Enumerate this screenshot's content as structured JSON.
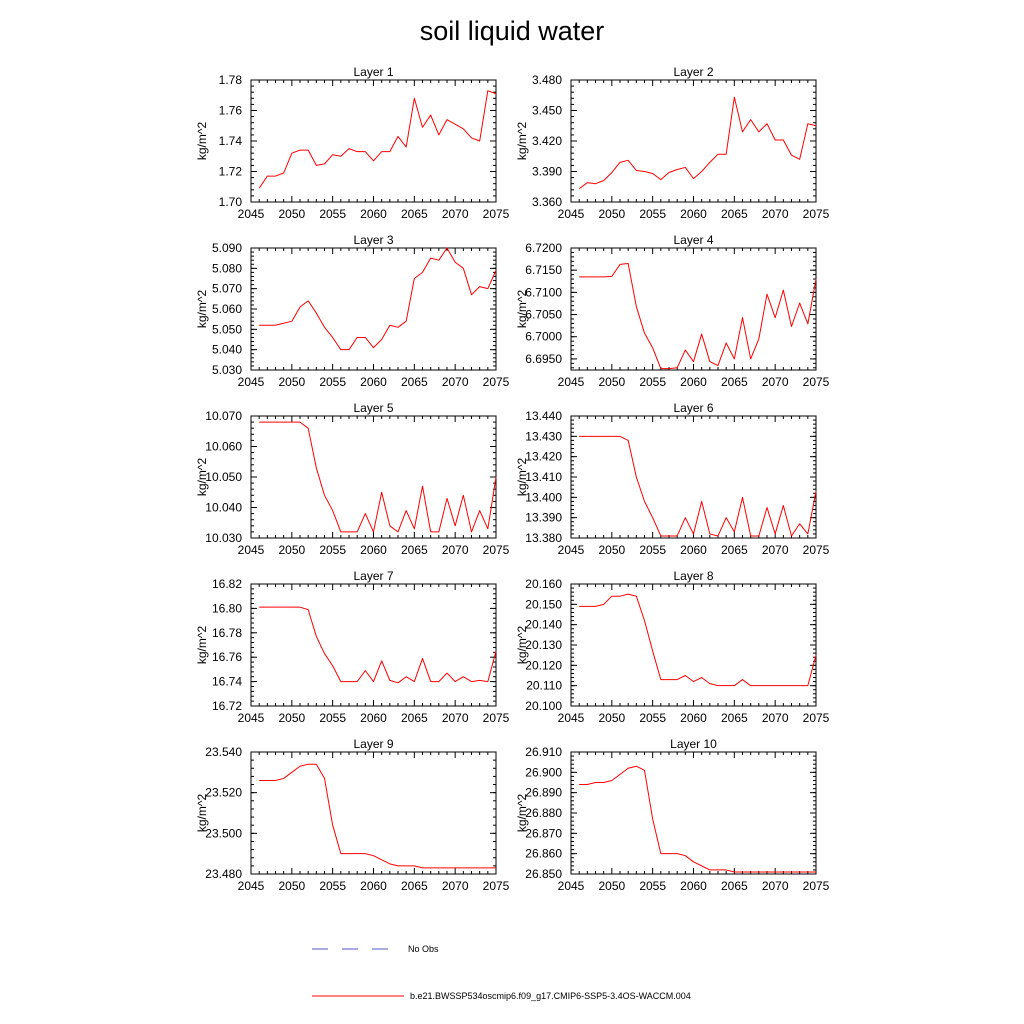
{
  "title": "soil liquid water",
  "colors": {
    "model": "#ff0000",
    "obs": "#5555cc",
    "axis": "#000000"
  },
  "legend": {
    "obs_label": "No Obs",
    "model_label": "b.e21.BWSSP534oscmip6.f09_g17.CMIP6-SSP5-3.4OS-WACCM.004"
  },
  "chart_data": [
    {
      "type": "line",
      "title": "Layer 1",
      "xlabel": "",
      "ylabel": "kg/m^2",
      "xlim": [
        2045,
        2075
      ],
      "ylim": [
        1.7,
        1.78
      ],
      "xticks": [
        2045,
        2050,
        2055,
        2060,
        2065,
        2070,
        2075
      ],
      "xtick_labels": [
        "2045",
        "2050",
        "2055",
        "2060",
        "2065",
        "2070",
        "2075"
      ],
      "yticks": [
        1.7,
        1.72,
        1.74,
        1.76,
        1.78
      ],
      "ytick_labels": [
        "1.70",
        "1.72",
        "1.74",
        "1.76",
        "1.78"
      ],
      "x": [
        2046,
        2047,
        2048,
        2049,
        2050,
        2051,
        2052,
        2053,
        2054,
        2055,
        2056,
        2057,
        2058,
        2059,
        2060,
        2061,
        2062,
        2063,
        2064,
        2065,
        2066,
        2067,
        2068,
        2069,
        2070,
        2071,
        2072,
        2073,
        2074,
        2075
      ],
      "series": [
        {
          "values": [
            1.709,
            1.717,
            1.717,
            1.719,
            1.732,
            1.734,
            1.734,
            1.724,
            1.725,
            1.731,
            1.73,
            1.735,
            1.733,
            1.733,
            1.727,
            1.733,
            1.733,
            1.743,
            1.736,
            1.768,
            1.749,
            1.757,
            1.744,
            1.754,
            1.751,
            1.748,
            1.742,
            1.74,
            1.773,
            1.771
          ]
        }
      ]
    },
    {
      "type": "line",
      "title": "Layer 2",
      "xlabel": "",
      "ylabel": "kg/m^2",
      "xlim": [
        2045,
        2075
      ],
      "ylim": [
        3.36,
        3.48
      ],
      "xticks": [
        2045,
        2050,
        2055,
        2060,
        2065,
        2070,
        2075
      ],
      "xtick_labels": [
        "2045",
        "2050",
        "2055",
        "2060",
        "2065",
        "2070",
        "2075"
      ],
      "yticks": [
        3.36,
        3.39,
        3.42,
        3.45,
        3.48
      ],
      "ytick_labels": [
        "3.360",
        "3.390",
        "3.420",
        "3.450",
        "3.480"
      ],
      "x": [
        2046,
        2047,
        2048,
        2049,
        2050,
        2051,
        2052,
        2053,
        2054,
        2055,
        2056,
        2057,
        2058,
        2059,
        2060,
        2061,
        2062,
        2063,
        2064,
        2065,
        2066,
        2067,
        2068,
        2069,
        2070,
        2071,
        2072,
        2073,
        2074,
        2075
      ],
      "series": [
        {
          "values": [
            3.373,
            3.379,
            3.378,
            3.381,
            3.389,
            3.399,
            3.401,
            3.391,
            3.39,
            3.388,
            3.382,
            3.389,
            3.392,
            3.394,
            3.383,
            3.39,
            3.399,
            3.407,
            3.407,
            3.463,
            3.429,
            3.441,
            3.429,
            3.437,
            3.421,
            3.421,
            3.406,
            3.402,
            3.437,
            3.435
          ]
        }
      ]
    },
    {
      "type": "line",
      "title": "Layer 3",
      "xlabel": "",
      "ylabel": "kg/m^2",
      "xlim": [
        2045,
        2075
      ],
      "ylim": [
        5.03,
        5.09
      ],
      "xticks": [
        2045,
        2050,
        2055,
        2060,
        2065,
        2070,
        2075
      ],
      "xtick_labels": [
        "2045",
        "2050",
        "2055",
        "2060",
        "2065",
        "2070",
        "2075"
      ],
      "yticks": [
        5.03,
        5.04,
        5.05,
        5.06,
        5.07,
        5.08,
        5.09
      ],
      "ytick_labels": [
        "5.030",
        "5.040",
        "5.050",
        "5.060",
        "5.070",
        "5.080",
        "5.090"
      ],
      "x": [
        2046,
        2047,
        2048,
        2049,
        2050,
        2051,
        2052,
        2053,
        2054,
        2055,
        2056,
        2057,
        2058,
        2059,
        2060,
        2061,
        2062,
        2063,
        2064,
        2065,
        2066,
        2067,
        2068,
        2069,
        2070,
        2071,
        2072,
        2073,
        2074,
        2075
      ],
      "series": [
        {
          "values": [
            5.052,
            5.052,
            5.052,
            5.053,
            5.054,
            5.061,
            5.064,
            5.058,
            5.051,
            5.046,
            5.04,
            5.04,
            5.046,
            5.046,
            5.041,
            5.045,
            5.052,
            5.051,
            5.054,
            5.075,
            5.078,
            5.085,
            5.084,
            5.09,
            5.083,
            5.08,
            5.067,
            5.071,
            5.07,
            5.079
          ]
        }
      ]
    },
    {
      "type": "line",
      "title": "Layer 4",
      "xlabel": "",
      "ylabel": "kg/m^2",
      "xlim": [
        2045,
        2075
      ],
      "ylim": [
        6.6925,
        6.72
      ],
      "xticks": [
        2045,
        2050,
        2055,
        2060,
        2065,
        2070,
        2075
      ],
      "xtick_labels": [
        "2045",
        "2050",
        "2055",
        "2060",
        "2065",
        "2070",
        "2075"
      ],
      "yticks": [
        6.695,
        6.7,
        6.705,
        6.71,
        6.715,
        6.72
      ],
      "ytick_labels": [
        "6.6950",
        "6.7000",
        "6.7050",
        "6.7100",
        "6.7150",
        "6.7200"
      ],
      "x": [
        2046,
        2047,
        2048,
        2049,
        2050,
        2051,
        2052,
        2053,
        2054,
        2055,
        2056,
        2057,
        2058,
        2059,
        2060,
        2061,
        2062,
        2063,
        2064,
        2065,
        2066,
        2067,
        2068,
        2069,
        2070,
        2071,
        2072,
        2073,
        2074,
        2075
      ],
      "series": [
        {
          "values": [
            6.7135,
            6.7135,
            6.7135,
            6.7135,
            6.7136,
            6.7163,
            6.7165,
            6.7068,
            6.7008,
            6.6975,
            6.6928,
            6.6928,
            6.693,
            6.697,
            6.6944,
            6.7006,
            6.6944,
            6.6935,
            6.6986,
            6.695,
            6.7043,
            6.695,
            6.6995,
            6.7096,
            6.7043,
            6.7105,
            6.7023,
            6.7076,
            6.7029,
            6.713
          ]
        }
      ]
    },
    {
      "type": "line",
      "title": "Layer 5",
      "xlabel": "",
      "ylabel": "kg/m^2",
      "xlim": [
        2045,
        2075
      ],
      "ylim": [
        10.03,
        10.07
      ],
      "xticks": [
        2045,
        2050,
        2055,
        2060,
        2065,
        2070,
        2075
      ],
      "xtick_labels": [
        "2045",
        "2050",
        "2055",
        "2060",
        "2065",
        "2070",
        "2075"
      ],
      "yticks": [
        10.03,
        10.04,
        10.05,
        10.06,
        10.07
      ],
      "ytick_labels": [
        "10.030",
        "10.040",
        "10.050",
        "10.060",
        "10.070"
      ],
      "x": [
        2046,
        2047,
        2048,
        2049,
        2050,
        2051,
        2052,
        2053,
        2054,
        2055,
        2056,
        2057,
        2058,
        2059,
        2060,
        2061,
        2062,
        2063,
        2064,
        2065,
        2066,
        2067,
        2068,
        2069,
        2070,
        2071,
        2072,
        2073,
        2074,
        2075
      ],
      "series": [
        {
          "values": [
            10.068,
            10.068,
            10.068,
            10.068,
            10.068,
            10.068,
            10.066,
            10.053,
            10.044,
            10.039,
            10.032,
            10.032,
            10.032,
            10.038,
            10.032,
            10.045,
            10.034,
            10.032,
            10.039,
            10.033,
            10.047,
            10.032,
            10.032,
            10.043,
            10.034,
            10.044,
            10.032,
            10.039,
            10.033,
            10.05
          ]
        }
      ]
    },
    {
      "type": "line",
      "title": "Layer 6",
      "xlabel": "",
      "ylabel": "kg/m^2",
      "xlim": [
        2045,
        2075
      ],
      "ylim": [
        13.38,
        13.44
      ],
      "xticks": [
        2045,
        2050,
        2055,
        2060,
        2065,
        2070,
        2075
      ],
      "xtick_labels": [
        "2045",
        "2050",
        "2055",
        "2060",
        "2065",
        "2070",
        "2075"
      ],
      "yticks": [
        13.38,
        13.39,
        13.4,
        13.41,
        13.42,
        13.43,
        13.44
      ],
      "ytick_labels": [
        "13.380",
        "13.390",
        "13.400",
        "13.410",
        "13.420",
        "13.430",
        "13.440"
      ],
      "x": [
        2046,
        2047,
        2048,
        2049,
        2050,
        2051,
        2052,
        2053,
        2054,
        2055,
        2056,
        2057,
        2058,
        2059,
        2060,
        2061,
        2062,
        2063,
        2064,
        2065,
        2066,
        2067,
        2068,
        2069,
        2070,
        2071,
        2072,
        2073,
        2074,
        2075
      ],
      "series": [
        {
          "values": [
            13.43,
            13.43,
            13.43,
            13.43,
            13.43,
            13.43,
            13.428,
            13.41,
            13.398,
            13.39,
            13.381,
            13.381,
            13.381,
            13.39,
            13.382,
            13.398,
            13.382,
            13.381,
            13.39,
            13.383,
            13.4,
            13.381,
            13.381,
            13.395,
            13.382,
            13.396,
            13.381,
            13.387,
            13.382,
            13.403
          ]
        }
      ]
    },
    {
      "type": "line",
      "title": "Layer 7",
      "xlabel": "",
      "ylabel": "kg/m^2",
      "xlim": [
        2045,
        2075
      ],
      "ylim": [
        16.72,
        16.82
      ],
      "xticks": [
        2045,
        2050,
        2055,
        2060,
        2065,
        2070,
        2075
      ],
      "xtick_labels": [
        "2045",
        "2050",
        "2055",
        "2060",
        "2065",
        "2070",
        "2075"
      ],
      "yticks": [
        16.72,
        16.74,
        16.76,
        16.78,
        16.8,
        16.82
      ],
      "ytick_labels": [
        "16.72",
        "16.74",
        "16.76",
        "16.78",
        "16.80",
        "16.82"
      ],
      "x": [
        2046,
        2047,
        2048,
        2049,
        2050,
        2051,
        2052,
        2053,
        2054,
        2055,
        2056,
        2057,
        2058,
        2059,
        2060,
        2061,
        2062,
        2063,
        2064,
        2065,
        2066,
        2067,
        2068,
        2069,
        2070,
        2071,
        2072,
        2073,
        2074,
        2075
      ],
      "series": [
        {
          "values": [
            16.801,
            16.801,
            16.801,
            16.801,
            16.801,
            16.801,
            16.799,
            16.777,
            16.763,
            16.753,
            16.74,
            16.74,
            16.74,
            16.749,
            16.74,
            16.757,
            16.741,
            16.739,
            16.744,
            16.74,
            16.759,
            16.74,
            16.74,
            16.747,
            16.74,
            16.744,
            16.74,
            16.741,
            16.74,
            16.765
          ]
        }
      ]
    },
    {
      "type": "line",
      "title": "Layer 8",
      "xlabel": "",
      "ylabel": "kg/m^2",
      "xlim": [
        2045,
        2075
      ],
      "ylim": [
        20.1,
        20.16
      ],
      "xticks": [
        2045,
        2050,
        2055,
        2060,
        2065,
        2070,
        2075
      ],
      "xtick_labels": [
        "2045",
        "2050",
        "2055",
        "2060",
        "2065",
        "2070",
        "2075"
      ],
      "yticks": [
        20.1,
        20.11,
        20.12,
        20.13,
        20.14,
        20.15,
        20.16
      ],
      "ytick_labels": [
        "20.100",
        "20.110",
        "20.120",
        "20.130",
        "20.140",
        "20.150",
        "20.160"
      ],
      "x": [
        2046,
        2047,
        2048,
        2049,
        2050,
        2051,
        2052,
        2053,
        2054,
        2055,
        2056,
        2057,
        2058,
        2059,
        2060,
        2061,
        2062,
        2063,
        2064,
        2065,
        2066,
        2067,
        2068,
        2069,
        2070,
        2071,
        2072,
        2073,
        2074,
        2075
      ],
      "series": [
        {
          "values": [
            20.149,
            20.149,
            20.149,
            20.15,
            20.154,
            20.154,
            20.155,
            20.154,
            20.142,
            20.127,
            20.113,
            20.113,
            20.113,
            20.115,
            20.112,
            20.114,
            20.111,
            20.11,
            20.11,
            20.11,
            20.113,
            20.11,
            20.11,
            20.11,
            20.11,
            20.11,
            20.11,
            20.11,
            20.11,
            20.125
          ]
        }
      ]
    },
    {
      "type": "line",
      "title": "Layer 9",
      "xlabel": "",
      "ylabel": "kg/m^2",
      "xlim": [
        2045,
        2075
      ],
      "ylim": [
        23.48,
        23.54
      ],
      "xticks": [
        2045,
        2050,
        2055,
        2060,
        2065,
        2070,
        2075
      ],
      "xtick_labels": [
        "2045",
        "2050",
        "2055",
        "2060",
        "2065",
        "2070",
        "2075"
      ],
      "yticks": [
        23.48,
        23.5,
        23.52,
        23.54
      ],
      "ytick_labels": [
        "23.480",
        "23.500",
        "23.520",
        "23.540"
      ],
      "x": [
        2046,
        2047,
        2048,
        2049,
        2050,
        2051,
        2052,
        2053,
        2054,
        2055,
        2056,
        2057,
        2058,
        2059,
        2060,
        2061,
        2062,
        2063,
        2064,
        2065,
        2066,
        2067,
        2068,
        2069,
        2070,
        2071,
        2072,
        2073,
        2074,
        2075
      ],
      "series": [
        {
          "values": [
            23.526,
            23.526,
            23.526,
            23.527,
            23.53,
            23.533,
            23.534,
            23.534,
            23.527,
            23.504,
            23.49,
            23.49,
            23.49,
            23.49,
            23.489,
            23.487,
            23.485,
            23.484,
            23.484,
            23.484,
            23.483,
            23.483,
            23.483,
            23.483,
            23.483,
            23.483,
            23.483,
            23.483,
            23.483,
            23.483
          ]
        }
      ]
    },
    {
      "type": "line",
      "title": "Layer 10",
      "xlabel": "",
      "ylabel": "kg/m^2",
      "xlim": [
        2045,
        2075
      ],
      "ylim": [
        26.85,
        26.91
      ],
      "xticks": [
        2045,
        2050,
        2055,
        2060,
        2065,
        2070,
        2075
      ],
      "xtick_labels": [
        "2045",
        "2050",
        "2055",
        "2060",
        "2065",
        "2070",
        "2075"
      ],
      "yticks": [
        26.85,
        26.86,
        26.87,
        26.88,
        26.89,
        26.9,
        26.91
      ],
      "ytick_labels": [
        "26.850",
        "26.860",
        "26.870",
        "26.880",
        "26.890",
        "26.900",
        "26.910"
      ],
      "x": [
        2046,
        2047,
        2048,
        2049,
        2050,
        2051,
        2052,
        2053,
        2054,
        2055,
        2056,
        2057,
        2058,
        2059,
        2060,
        2061,
        2062,
        2063,
        2064,
        2065,
        2066,
        2067,
        2068,
        2069,
        2070,
        2071,
        2072,
        2073,
        2074,
        2075
      ],
      "series": [
        {
          "values": [
            26.894,
            26.894,
            26.895,
            26.895,
            26.896,
            26.899,
            26.902,
            26.903,
            26.901,
            26.877,
            26.86,
            26.86,
            26.86,
            26.859,
            26.856,
            26.854,
            26.852,
            26.852,
            26.852,
            26.851,
            26.851,
            26.851,
            26.851,
            26.851,
            26.851,
            26.851,
            26.851,
            26.851,
            26.851,
            26.851
          ]
        }
      ]
    }
  ]
}
